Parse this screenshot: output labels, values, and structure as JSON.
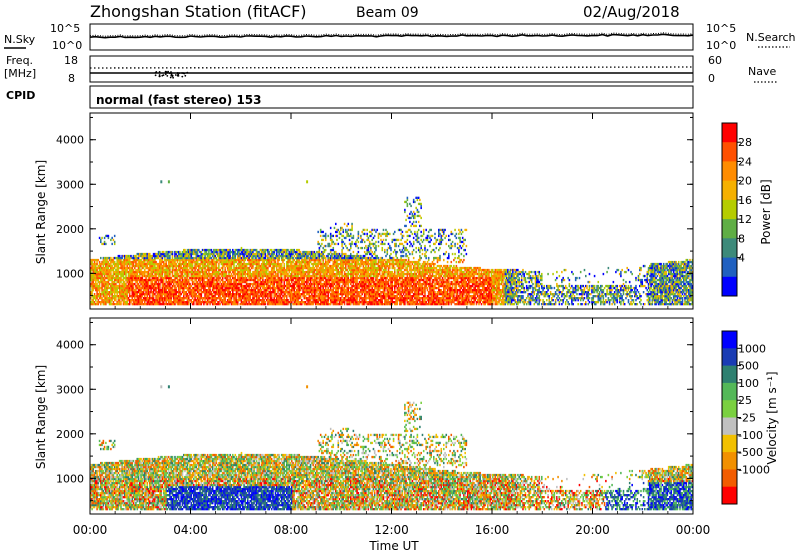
{
  "header": {
    "station": "Zhongshan Station (fitACF)",
    "beam": "Beam 09",
    "date": "02/Aug/2018"
  },
  "noise_panel": {
    "left_label": "N.Sky",
    "right_label": "N.Search",
    "left_ticks": [
      "10^5",
      "10^0"
    ],
    "right_ticks": [
      "10^5",
      "10^0"
    ]
  },
  "freq_panel": {
    "left_label_1": "Freq.",
    "left_label_2": "[MHz]",
    "right_label": "Nave",
    "left_ticks": [
      "18",
      "8"
    ],
    "right_ticks": [
      "60",
      "0"
    ]
  },
  "cpid": {
    "label": "CPID",
    "value": "normal (fast stereo) 153"
  },
  "chart_data": [
    {
      "type": "heatmap",
      "name": "power",
      "ylabel": "Slant Range [km]",
      "xlabel": "",
      "yticks": [
        "4000",
        "3000",
        "2000",
        "1000"
      ],
      "ylim": [
        200,
        4600
      ],
      "xlim_hours": [
        0,
        24
      ],
      "colorbar": {
        "label": "Power [dB]",
        "ticks": [
          "28",
          "24",
          "20",
          "16",
          "12",
          "8",
          "4"
        ],
        "colors": [
          "#ff0000",
          "#ff5000",
          "#ff8c00",
          "#f5b000",
          "#b5cc00",
          "#5fae45",
          "#3d8a7a",
          "#2060c0",
          "#0000ff"
        ]
      }
    },
    {
      "type": "heatmap",
      "name": "velocity",
      "ylabel": "Slant Range [km]",
      "xlabel": "Time UT",
      "yticks": [
        "4000",
        "3000",
        "2000",
        "1000"
      ],
      "xticks": [
        "00:00",
        "04:00",
        "08:00",
        "12:00",
        "16:00",
        "20:00",
        "00:00"
      ],
      "ylim": [
        200,
        4600
      ],
      "xlim_hours": [
        0,
        24
      ],
      "colorbar": {
        "label": "Velocity [m s⁻¹]",
        "ticks": [
          "1000",
          "500",
          "100",
          "25",
          "-25",
          "-100",
          "-500",
          "-1000"
        ],
        "colors": [
          "#0000ff",
          "#1a3cb4",
          "#2e8070",
          "#54b858",
          "#7ad040",
          "#c0c0c0",
          "#f2c000",
          "#f29000",
          "#f25c00",
          "#ff0000"
        ]
      }
    }
  ]
}
